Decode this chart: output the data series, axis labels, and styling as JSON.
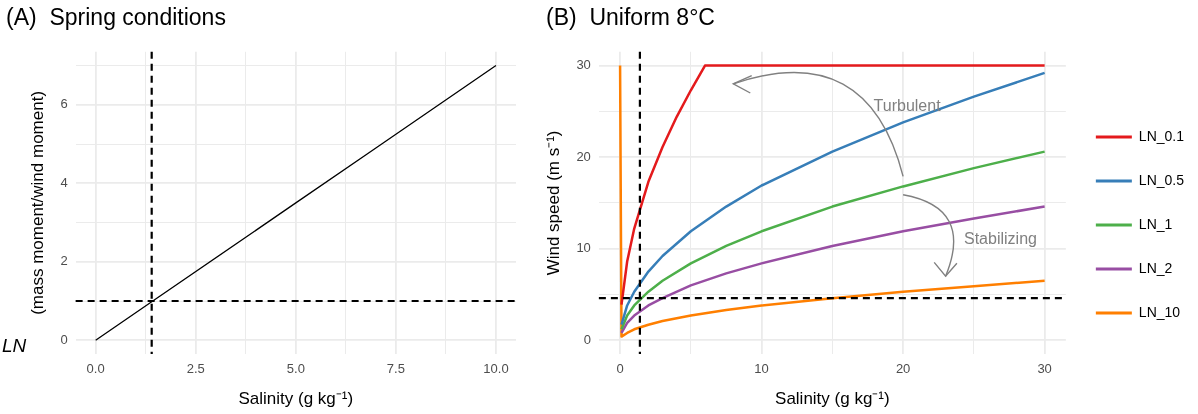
{
  "chart_data": [
    {
      "type": "line",
      "title": "(A)  Spring conditions",
      "xlabel": "Salinity (g kg⁻¹)",
      "ylabel": "(mass moment/wind moment)",
      "annotations": [
        "LN"
      ],
      "series": [
        {
          "color": "#000000",
          "x": [
            0,
            1.4,
            5,
            6.9,
            10
          ],
          "values": [
            0,
            0.98,
            3.5,
            4.83,
            7
          ]
        }
      ],
      "xlim": [
        -0.5,
        10.5
      ],
      "ylim": [
        -0.35,
        7.35
      ],
      "xticks": [
        {
          "value": 0,
          "label": "0.0"
        },
        {
          "value": 1.25,
          "label": null
        },
        {
          "value": 2.5,
          "label": "2.5"
        },
        {
          "value": 3.75,
          "label": null
        },
        {
          "value": 5,
          "label": "5.0"
        },
        {
          "value": 6.25,
          "label": null
        },
        {
          "value": 7.5,
          "label": "7.5"
        },
        {
          "value": 8.75,
          "label": null
        },
        {
          "value": 10,
          "label": "10.0"
        }
      ],
      "yticks": [
        0,
        {
          "value": 1,
          "label": null
        },
        2,
        {
          "value": 3,
          "label": null
        },
        4,
        {
          "value": 5,
          "label": null
        },
        6,
        {
          "value": 7,
          "label": null
        }
      ],
      "ref_lines": [
        {
          "axis": "x",
          "value": 1.4,
          "line_style": "dashed",
          "color": "#000000"
        },
        {
          "axis": "y",
          "value": 1,
          "line_style": "dashed",
          "color": "#000000"
        }
      ],
      "grid": true,
      "legend": false,
      "marker": "none",
      "line_style": "solid"
    },
    {
      "type": "line",
      "title": "(B)  Uniform 8°C",
      "xlabel": "Salinity (g kg⁻¹)",
      "ylabel": "Wind speed (m s⁻¹)",
      "annotations": [
        "Turbulent",
        "Stabilizing"
      ],
      "series": [
        {
          "name": "LN_0.1",
          "color": "#e41a1c",
          "x": [
            0.1,
            0.5,
            1,
            2,
            3,
            4,
            5,
            6,
            10,
            20,
            30
          ],
          "values": [
            3.9,
            8.6,
            12.2,
            17.3,
            21.1,
            24.4,
            27.3,
            30,
            30,
            30,
            30
          ]
        },
        {
          "name": "LN_0.5",
          "color": "#377eb8",
          "x": [
            0.1,
            0.5,
            1,
            2,
            3,
            5,
            7.5,
            10,
            15,
            20,
            25,
            30
          ],
          "values": [
            1.7,
            3.8,
            5.3,
            7.5,
            9.2,
            11.9,
            14.6,
            16.9,
            20.6,
            23.8,
            26.6,
            29.2
          ]
        },
        {
          "name": "LN_1",
          "color": "#4daf4a",
          "x": [
            0.1,
            0.5,
            1,
            2,
            3,
            5,
            7.5,
            10,
            15,
            20,
            25,
            30
          ],
          "values": [
            1.2,
            2.7,
            3.8,
            5.3,
            6.5,
            8.4,
            10.3,
            11.9,
            14.6,
            16.8,
            18.8,
            20.6
          ]
        },
        {
          "name": "LN_2",
          "color": "#984ea3",
          "x": [
            0.1,
            0.5,
            1,
            2,
            3,
            5,
            7.5,
            10,
            15,
            20,
            25,
            30
          ],
          "values": [
            0.8,
            1.9,
            2.7,
            3.8,
            4.6,
            6,
            7.3,
            8.4,
            10.3,
            11.9,
            13.3,
            14.6
          ]
        },
        {
          "name": "LN_10",
          "color": "#ff7f00",
          "x": [
            0,
            0.1,
            0.5,
            1,
            2,
            3,
            5,
            7.5,
            10,
            15,
            20,
            25,
            30
          ],
          "values": [
            30,
            0.4,
            0.8,
            1.2,
            1.7,
            2.1,
            2.7,
            3.3,
            3.8,
            4.6,
            5.3,
            5.9,
            6.5
          ]
        }
      ],
      "xlim": [
        -1.5,
        31.5
      ],
      "ylim": [
        -1.5,
        31.5
      ],
      "xticks": [
        0,
        {
          "value": 5,
          "label": null
        },
        10,
        {
          "value": 15,
          "label": null
        },
        20,
        {
          "value": 25,
          "label": null
        },
        30
      ],
      "yticks": [
        0,
        {
          "value": 5,
          "label": null
        },
        10,
        {
          "value": 15,
          "label": null
        },
        20,
        {
          "value": 25,
          "label": null
        },
        30
      ],
      "ref_lines": [
        {
          "axis": "x",
          "value": 1.4,
          "line_style": "dashed",
          "color": "#000000"
        },
        {
          "axis": "y",
          "value": 4.6,
          "line_style": "dashed",
          "color": "#000000"
        }
      ],
      "grid": true,
      "legend": "right",
      "marker": "none",
      "line_style": "solid"
    }
  ]
}
